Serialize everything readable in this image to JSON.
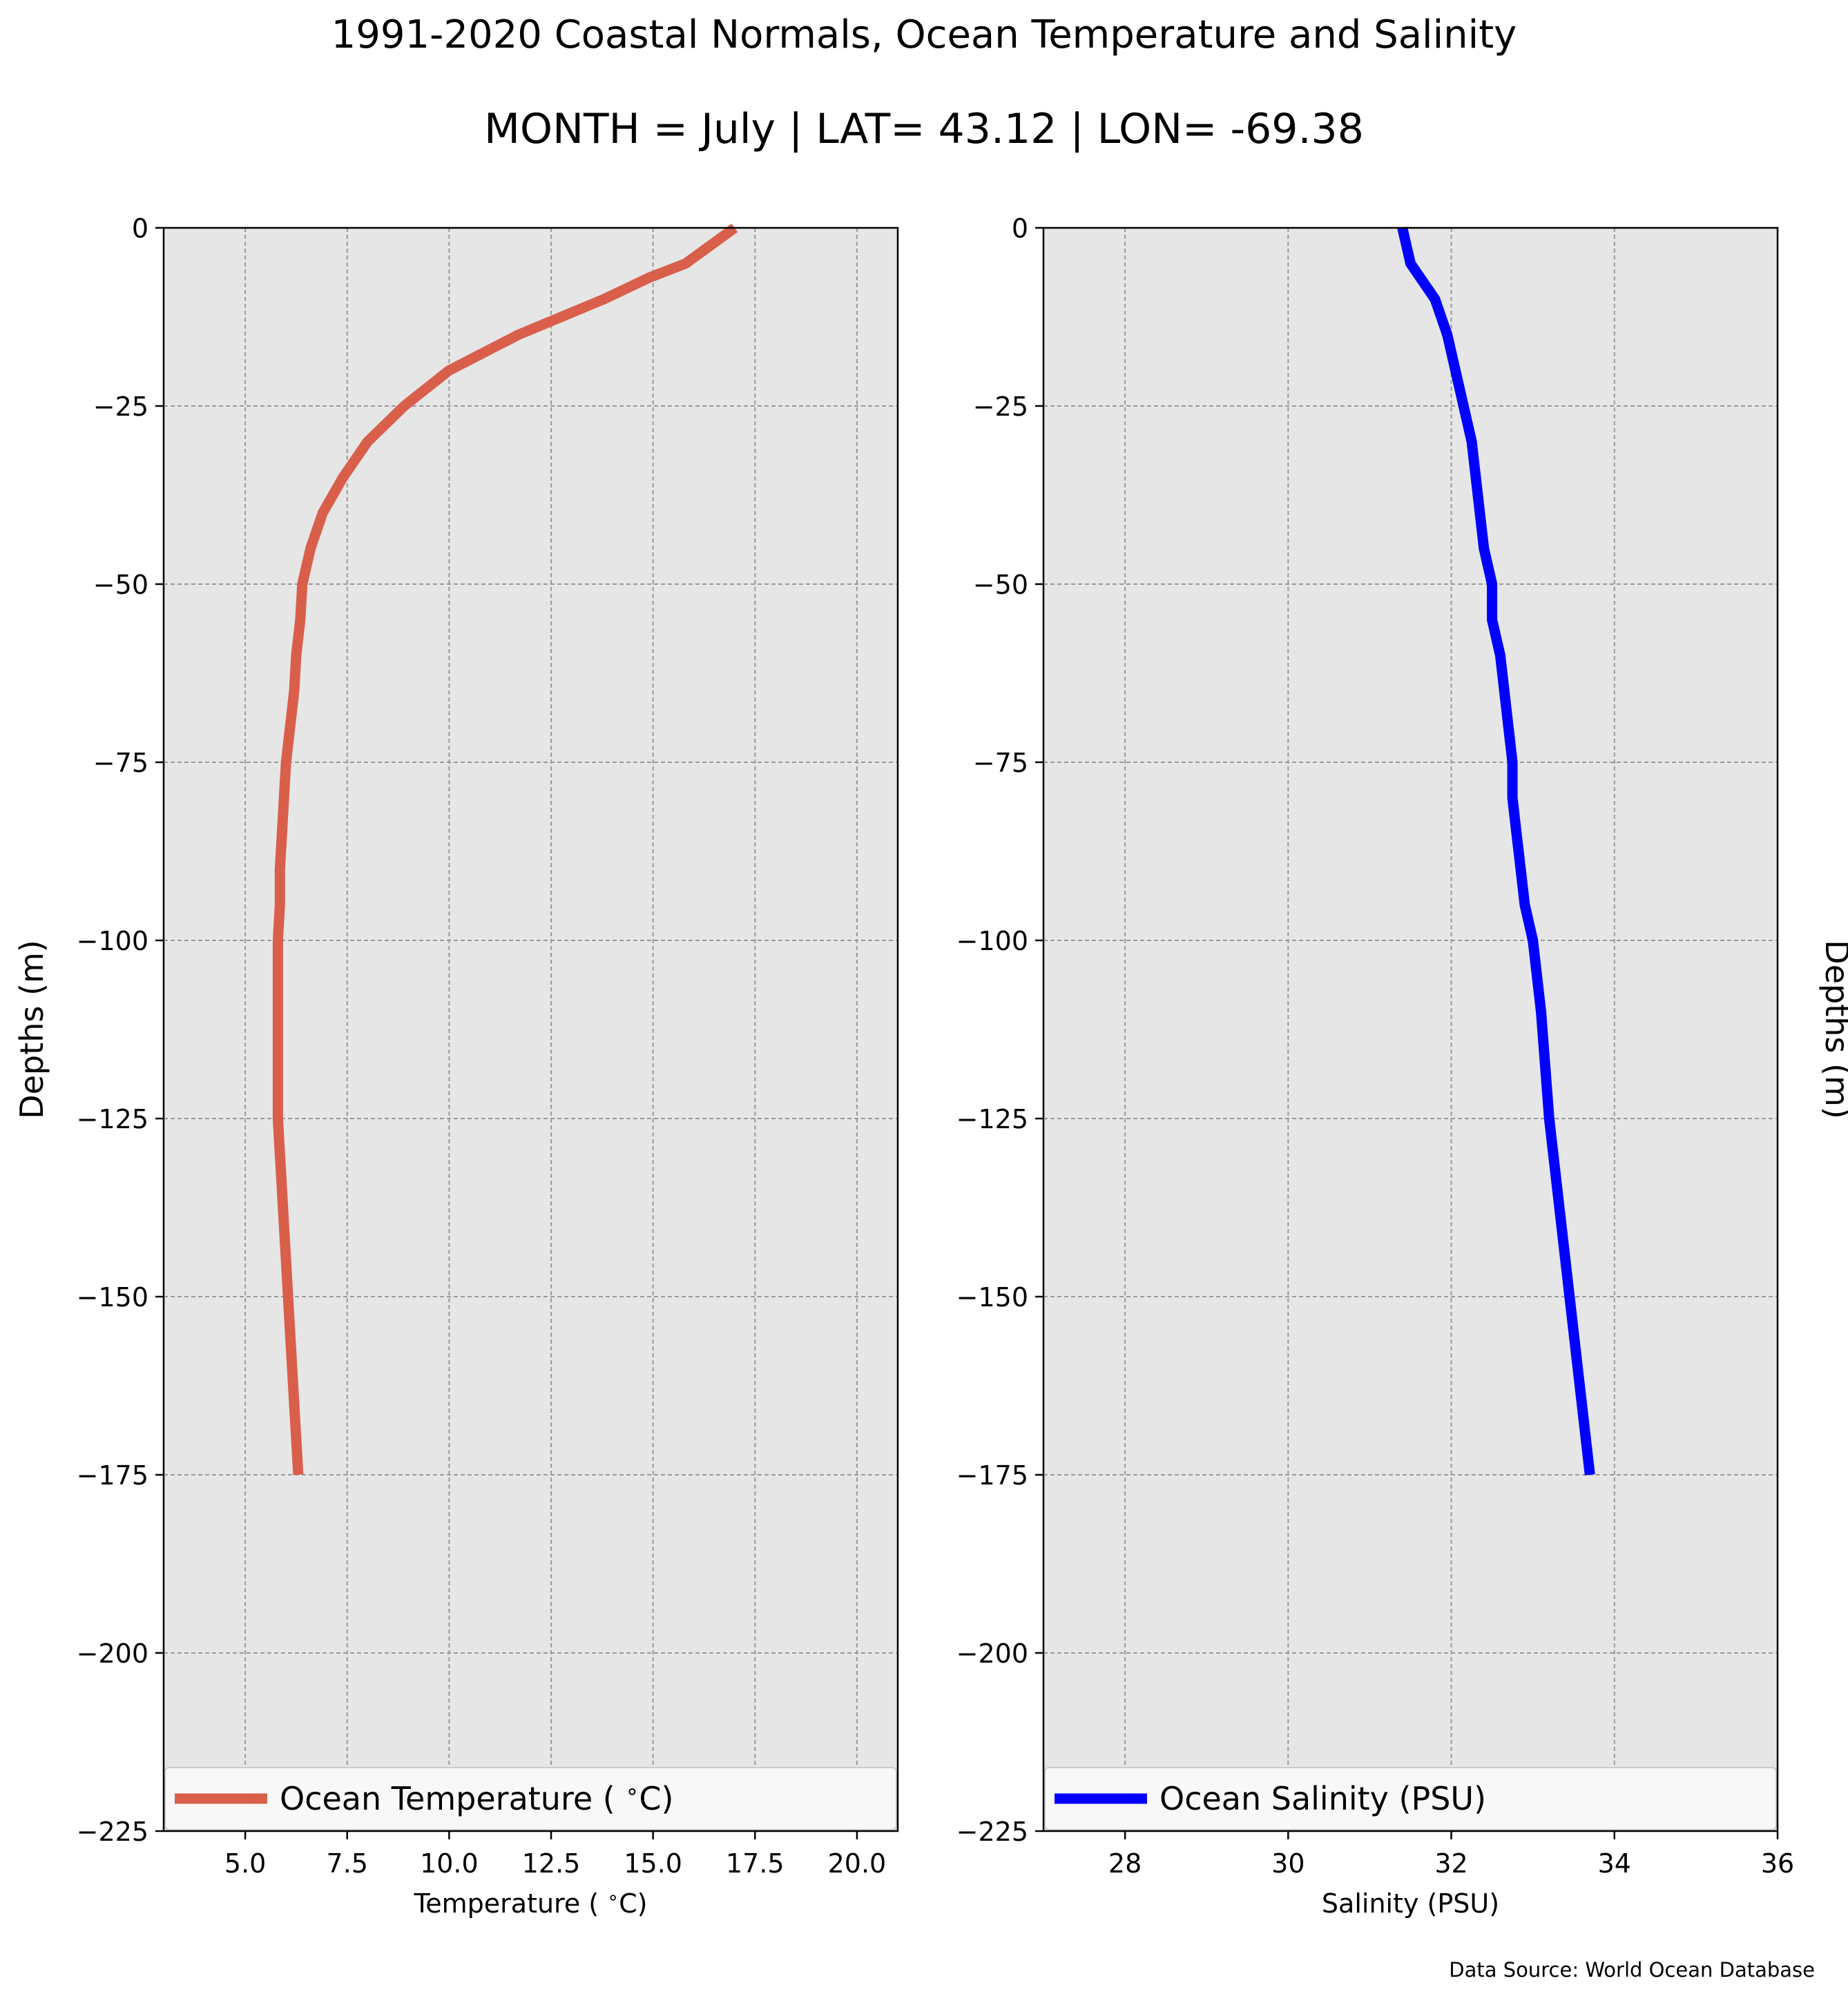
{
  "figure": {
    "title": "1991-2020 Coastal Normals, Ocean Temperature and Salinity",
    "subtitle": "MONTH = July | LAT= 43.12 | LON= -69.38",
    "source": "Data Source: World Ocean Database",
    "background_color": "#e6e6e6",
    "grid": true
  },
  "chart_data": [
    {
      "type": "line",
      "xlabel": "Temperature ($^\\circ$C)",
      "ylabel": "Depths (m)",
      "ylabel_side": "left",
      "xlim": [
        3.0,
        21.0
      ],
      "ylim": [
        -225,
        0
      ],
      "xticks": [
        5.0,
        7.5,
        10.0,
        12.5,
        15.0,
        17.5,
        20.0
      ],
      "xtick_labels": [
        "5.0",
        "7.5",
        "10.0",
        "12.5",
        "15.0",
        "17.5",
        "20.0"
      ],
      "yticks": [
        0,
        -25,
        -50,
        -75,
        -100,
        -125,
        -150,
        -175,
        -200,
        -225
      ],
      "ytick_labels": [
        "0",
        "−25",
        "−50",
        "−75",
        "−100",
        "−125",
        "−150",
        "−175",
        "−200",
        "−225"
      ],
      "legend": {
        "label": "Ocean Temperature ($^\\circ$C)",
        "placement": "lower"
      },
      "series": [
        {
          "name": "Ocean Temperature (°C)",
          "color": "#d95f4b",
          "x": [
            17.0,
            15.8,
            14.9,
            13.8,
            11.7,
            10.0,
            8.9,
            8.0,
            7.4,
            6.9,
            6.6,
            6.4,
            6.35,
            6.25,
            6.2,
            6.1,
            6.0,
            5.95,
            5.9,
            5.85,
            5.85,
            5.8,
            5.8,
            5.8,
            5.8,
            5.8,
            5.85,
            5.9,
            5.95,
            6.0,
            6.05,
            6.15,
            6.3
          ],
          "y": [
            0,
            -5,
            -7,
            -10,
            -15,
            -20,
            -25,
            -30,
            -35,
            -40,
            -45,
            -50,
            -55,
            -60,
            -65,
            -70,
            -75,
            -80,
            -85,
            -90,
            -95,
            -100,
            -105,
            -110,
            -115,
            -125,
            -130,
            -135,
            -140,
            -145,
            -150,
            -160,
            -175
          ]
        }
      ]
    },
    {
      "type": "line",
      "xlabel": "Salinity (PSU)",
      "ylabel": "Depths (m)",
      "ylabel_side": "right",
      "xlim": [
        27.0,
        36.0
      ],
      "ylim": [
        -225,
        0
      ],
      "xticks": [
        28,
        30,
        32,
        34,
        36
      ],
      "xtick_labels": [
        "28",
        "30",
        "32",
        "34",
        "36"
      ],
      "yticks": [
        0,
        -25,
        -50,
        -75,
        -100,
        -125,
        -150,
        -175,
        -200,
        -225
      ],
      "ytick_labels": [
        "0",
        "−25",
        "−50",
        "−75",
        "−100",
        "−125",
        "−150",
        "−175",
        "−200",
        "−225"
      ],
      "legend": {
        "label": "Ocean Salinity (PSU)",
        "placement": "lower"
      },
      "series": [
        {
          "name": "Ocean Salinity (PSU)",
          "color": "#0000ff",
          "x": [
            31.4,
            31.5,
            31.8,
            31.95,
            32.05,
            32.15,
            32.25,
            32.3,
            32.35,
            32.4,
            32.5,
            32.5,
            32.6,
            32.65,
            32.7,
            32.75,
            32.75,
            32.8,
            32.85,
            32.9,
            33.0,
            33.1,
            33.2,
            33.4,
            33.55,
            33.7
          ],
          "y": [
            0,
            -5,
            -10,
            -15,
            -20,
            -25,
            -30,
            -35,
            -40,
            -45,
            -50,
            -55,
            -60,
            -65,
            -70,
            -75,
            -80,
            -85,
            -90,
            -95,
            -100,
            -110,
            -125,
            -145,
            -160,
            -175
          ]
        }
      ]
    }
  ]
}
